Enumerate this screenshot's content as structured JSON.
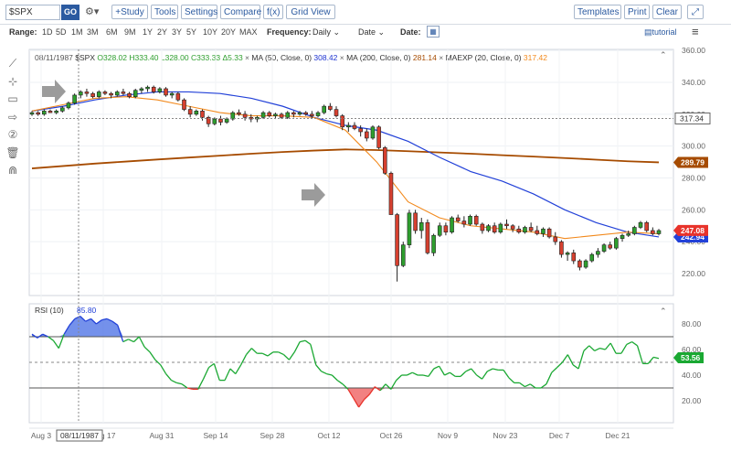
{
  "toolbar": {
    "symbol": "$SPX",
    "go": "GO",
    "settings_glyph": "⚙▾",
    "study": "+Study",
    "tools": "Tools",
    "settings": "Settings",
    "compare": "Compare",
    "fx": "f(x)",
    "grid_view": "Grid View",
    "templates": "Templates",
    "print": "Print",
    "clear": "Clear",
    "expand_glyph": "⤢"
  },
  "range_bar": {
    "range_label": "Range:",
    "ranges": [
      "1D",
      "5D",
      "1M",
      "3M",
      "6M",
      "9M",
      "1Y",
      "2Y",
      "3Y",
      "5Y",
      "10Y",
      "20Y",
      "MAX"
    ],
    "frequency_label": "Frequency:",
    "frequency_value": "Daily",
    "date_select": "Date",
    "date_label": "Date:",
    "tutorial": "tutorial"
  },
  "left_tools": [
    {
      "icon": "line-draw-icon",
      "glyph": "⟋"
    },
    {
      "icon": "crosshair-line-icon",
      "glyph": "⊹"
    },
    {
      "icon": "rectangle-icon",
      "glyph": "▭"
    },
    {
      "icon": "arrow-icon",
      "glyph": "⇨"
    },
    {
      "icon": "circled-two-icon",
      "glyph": "②"
    },
    {
      "icon": "trash-icon",
      "glyph": "🗑"
    },
    {
      "icon": "magnet-icon",
      "glyph": "⋒"
    }
  ],
  "studies": [
    {
      "text": "08/11/1987",
      "color": "#555555"
    },
    {
      "text": "$SPX",
      "color": "#333333"
    },
    {
      "text": "O328.02 H333.40 L328.00 C333.33 Δ5.33",
      "color": "#2e9e2e"
    },
    {
      "text": "MA (50, Close, 0)",
      "color": "#333333"
    },
    {
      "text": "308.42",
      "color": "#1c32d0"
    },
    {
      "text": "MA (200, Close, 0)",
      "color": "#333333"
    },
    {
      "text": "281.14",
      "color": "#a64b00"
    },
    {
      "text": "MAEXP (20, Close, 0)",
      "color": "#333333"
    },
    {
      "text": "317.42",
      "color": "#f2891c"
    }
  ],
  "chart_data": {
    "type": "candlestick",
    "symbol": "$SPX",
    "price_axis": {
      "ticks": [
        220,
        240,
        260,
        280,
        300,
        320,
        340,
        360
      ],
      "labels": [
        "220.00",
        "240.00",
        "260.00",
        "280.00",
        "300.00",
        "320.00",
        "340.00",
        "360.00"
      ],
      "range": [
        204,
        360
      ]
    },
    "x_tick_labels": [
      "Aug 3",
      "Aug 17",
      "Aug 31",
      "Sep 14",
      "Sep 28",
      "Oct 12",
      "Oct 26",
      "Nov 9",
      "Nov 23",
      "Dec 7",
      "Dec 21"
    ],
    "crosshair": {
      "date": "08/11/1987",
      "price": 317.34,
      "price_label": "317.34"
    },
    "last_price": {
      "value": 247.08,
      "label": "247.08",
      "color": "#e8332b"
    },
    "ma200_label": {
      "value": 289.79,
      "label": "289.79",
      "color": "#a64b00"
    },
    "ma50_label": {
      "value": 242.94,
      "label": "242.94",
      "color": "#2241d8"
    },
    "candles": [
      [
        320,
        322,
        319,
        321
      ],
      [
        321,
        322,
        319,
        320
      ],
      [
        320,
        323,
        319,
        322
      ],
      [
        322,
        323,
        321,
        321
      ],
      [
        321,
        323,
        320,
        322
      ],
      [
        322,
        325,
        321,
        324
      ],
      [
        324,
        328,
        323,
        327
      ],
      [
        327,
        333,
        326,
        332
      ],
      [
        332,
        335,
        330,
        334
      ],
      [
        334,
        336,
        331,
        333
      ],
      [
        333,
        334,
        330,
        331
      ],
      [
        331,
        335,
        330,
        334
      ],
      [
        334,
        335,
        332,
        333
      ],
      [
        333,
        334,
        330,
        332
      ],
      [
        332,
        335,
        331,
        334
      ],
      [
        334,
        336,
        332,
        333
      ],
      [
        333,
        334,
        330,
        331
      ],
      [
        331,
        336,
        330,
        335
      ],
      [
        335,
        337,
        333,
        336
      ],
      [
        336,
        338,
        334,
        337
      ],
      [
        337,
        338,
        333,
        334
      ],
      [
        334,
        337,
        333,
        336
      ],
      [
        336,
        337,
        331,
        332
      ],
      [
        332,
        334,
        330,
        333
      ],
      [
        333,
        334,
        328,
        329
      ],
      [
        329,
        330,
        322,
        323
      ],
      [
        323,
        325,
        318,
        320
      ],
      [
        320,
        323,
        319,
        322
      ],
      [
        322,
        323,
        316,
        318
      ],
      [
        318,
        319,
        312,
        314
      ],
      [
        314,
        318,
        313,
        317
      ],
      [
        317,
        319,
        313,
        315
      ],
      [
        315,
        318,
        314,
        317
      ],
      [
        317,
        322,
        316,
        321
      ],
      [
        321,
        323,
        319,
        320
      ],
      [
        320,
        322,
        316,
        318
      ],
      [
        318,
        320,
        315,
        317
      ],
      [
        317,
        319,
        315,
        318
      ],
      [
        318,
        322,
        317,
        321
      ],
      [
        321,
        322,
        318,
        319
      ],
      [
        319,
        321,
        317,
        320
      ],
      [
        320,
        321,
        317,
        318
      ],
      [
        318,
        322,
        317,
        321
      ],
      [
        321,
        322,
        318,
        320
      ],
      [
        320,
        322,
        319,
        321
      ],
      [
        321,
        322,
        319,
        320
      ],
      [
        320,
        322,
        317,
        319
      ],
      [
        319,
        322,
        318,
        321
      ],
      [
        321,
        326,
        320,
        325
      ],
      [
        325,
        327,
        322,
        323
      ],
      [
        323,
        325,
        318,
        319
      ],
      [
        319,
        320,
        310,
        312
      ],
      [
        312,
        315,
        309,
        313
      ],
      [
        313,
        315,
        310,
        311
      ],
      [
        311,
        313,
        306,
        309
      ],
      [
        309,
        311,
        303,
        305
      ],
      [
        305,
        313,
        304,
        312
      ],
      [
        312,
        313,
        298,
        299
      ],
      [
        299,
        300,
        282,
        283
      ],
      [
        283,
        284,
        257,
        257
      ],
      [
        257,
        258,
        215,
        225
      ],
      [
        225,
        240,
        224,
        238
      ],
      [
        238,
        260,
        236,
        258
      ],
      [
        258,
        260,
        245,
        247
      ],
      [
        247,
        255,
        242,
        252
      ],
      [
        252,
        254,
        232,
        233
      ],
      [
        233,
        245,
        231,
        244
      ],
      [
        244,
        252,
        243,
        250
      ],
      [
        250,
        252,
        244,
        246
      ],
      [
        246,
        256,
        245,
        255
      ],
      [
        255,
        257,
        252,
        253
      ],
      [
        253,
        256,
        249,
        251
      ],
      [
        251,
        257,
        250,
        256
      ],
      [
        256,
        257,
        250,
        251
      ],
      [
        251,
        252,
        245,
        247
      ],
      [
        247,
        251,
        246,
        250
      ],
      [
        250,
        252,
        245,
        246
      ],
      [
        246,
        252,
        245,
        251
      ],
      [
        251,
        254,
        248,
        250
      ],
      [
        250,
        251,
        246,
        248
      ],
      [
        248,
        250,
        245,
        246
      ],
      [
        246,
        250,
        245,
        249
      ],
      [
        249,
        252,
        246,
        247
      ],
      [
        247,
        250,
        244,
        245
      ],
      [
        245,
        249,
        243,
        248
      ],
      [
        248,
        249,
        242,
        243
      ],
      [
        243,
        246,
        238,
        240
      ],
      [
        240,
        241,
        230,
        232
      ],
      [
        232,
        234,
        228,
        233
      ],
      [
        233,
        235,
        226,
        228
      ],
      [
        228,
        229,
        222,
        224
      ],
      [
        224,
        229,
        223,
        228
      ],
      [
        228,
        233,
        227,
        232
      ],
      [
        232,
        236,
        230,
        234
      ],
      [
        234,
        239,
        233,
        238
      ],
      [
        238,
        240,
        235,
        236
      ],
      [
        236,
        243,
        235,
        242
      ],
      [
        242,
        245,
        240,
        244
      ],
      [
        244,
        247,
        243,
        245
      ],
      [
        245,
        250,
        244,
        249
      ],
      [
        249,
        253,
        248,
        252
      ],
      [
        252,
        253,
        246,
        247
      ],
      [
        247,
        249,
        244,
        245
      ],
      [
        245,
        248,
        244,
        247
      ]
    ],
    "ma50": [
      322,
      325,
      329,
      332,
      334,
      334,
      333,
      330,
      325,
      318,
      313,
      310,
      303,
      293,
      284,
      278,
      270,
      260,
      252,
      246,
      243
    ],
    "ma200": [
      286,
      287.5,
      289,
      290.3,
      291.6,
      292.8,
      294,
      295.2,
      296.3,
      297.2,
      297.9,
      297.5,
      296.8,
      296,
      295.2,
      294.3,
      293.4,
      292.5,
      291.5,
      290.5,
      289.8
    ],
    "maexp20": [
      322,
      326,
      330,
      331,
      329,
      325,
      321,
      319,
      319,
      318,
      310,
      290,
      265,
      255,
      250,
      248,
      246,
      242,
      244,
      246,
      245
    ],
    "rsi": {
      "label": "RSI (10)",
      "value_label": "85.80",
      "value_color": "#2241d8",
      "last_label": "53.56",
      "axis_ticks": [
        20,
        40,
        60,
        80
      ],
      "axis_labels": [
        "20.00",
        "40.00",
        "60.00",
        "80.00"
      ],
      "overbought": 70,
      "oversold": 30,
      "midline": 50,
      "values": [
        72,
        69,
        72,
        70,
        67,
        61,
        72,
        79,
        84,
        86,
        82,
        84,
        80,
        83,
        84,
        82,
        79,
        66,
        68,
        66,
        70,
        62,
        58,
        52,
        48,
        41,
        36,
        34,
        33,
        30,
        29,
        29,
        37,
        46,
        49,
        36,
        36,
        45,
        41,
        48,
        56,
        61,
        57,
        57,
        55,
        58,
        58,
        56,
        52,
        58,
        66,
        67,
        64,
        48,
        43,
        41,
        40,
        36,
        33,
        29,
        22,
        15,
        21,
        25,
        31,
        28,
        33,
        29,
        36,
        40,
        40,
        42,
        40,
        40,
        39,
        45,
        47,
        40,
        42,
        39,
        39,
        43,
        45,
        40,
        37,
        43,
        45,
        44,
        44,
        38,
        34,
        34,
        31,
        33,
        30,
        30,
        33,
        42,
        46,
        50,
        56,
        48,
        45,
        59,
        63,
        59,
        61,
        60,
        65,
        57,
        57,
        64,
        66,
        63,
        49,
        49,
        54,
        53
      ]
    }
  }
}
